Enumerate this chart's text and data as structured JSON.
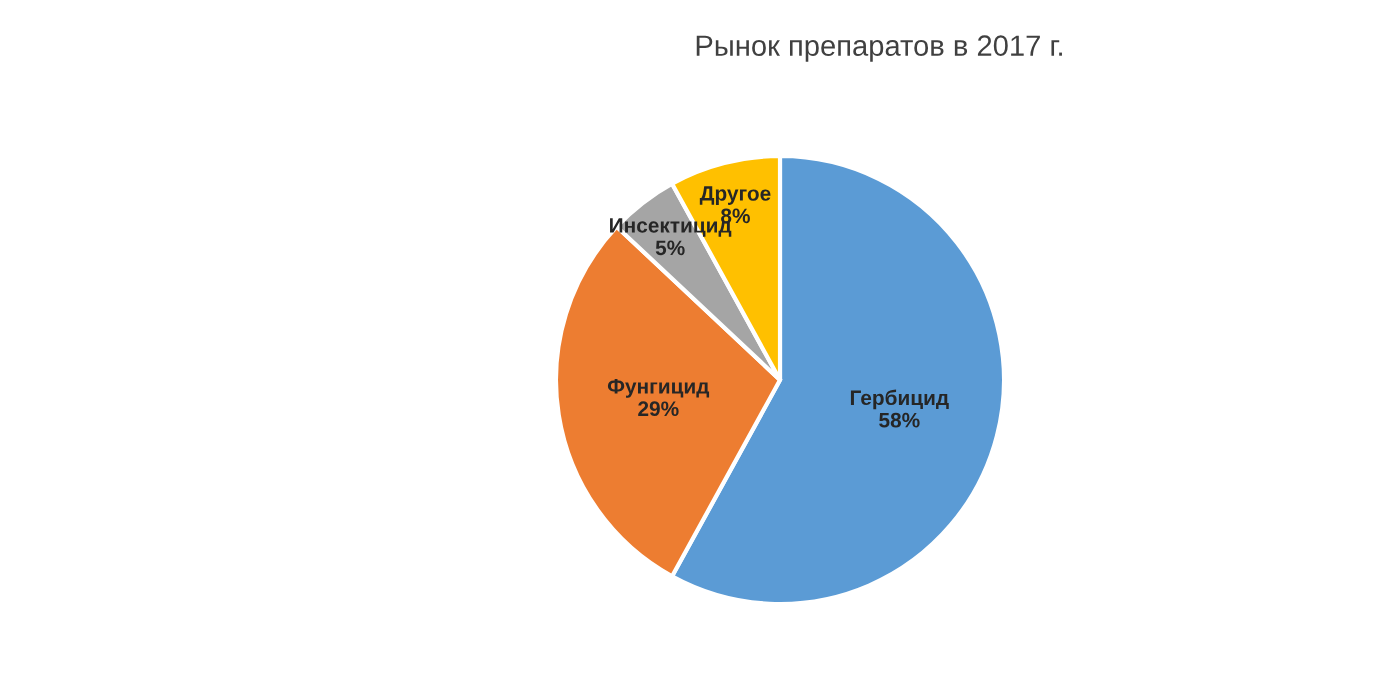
{
  "chart_data": {
    "type": "pie",
    "title": "Рынок препаратов в 2017 г.",
    "categories": [
      "Гербицид",
      "Фунгицид",
      "Инсектицид",
      "Другое"
    ],
    "values": [
      58,
      29,
      5,
      8
    ],
    "value_labels": [
      "58%",
      "29%",
      "5%",
      "8%"
    ],
    "colors": [
      "#5b9bd5",
      "#ed7d31",
      "#a5a5a5",
      "#ffc000"
    ]
  }
}
